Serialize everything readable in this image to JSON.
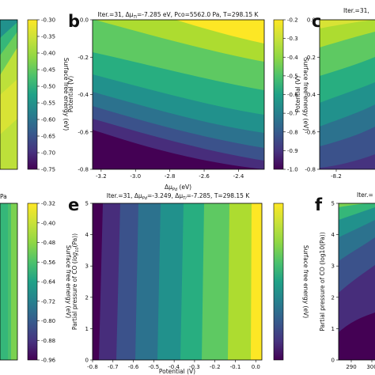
{
  "chart_data": [
    {
      "panel": "a",
      "type": "heatmap",
      "visible": "partial (cropped at left)",
      "colorbar": {
        "label": "Surface free energy (eV)",
        "ticks": [
          "-0.30",
          "-0.35",
          "-0.40",
          "-0.45",
          "-0.50",
          "-0.55",
          "-0.60",
          "-0.65",
          "-0.70",
          "-0.75"
        ],
        "range": [
          -0.75,
          -0.3
        ]
      }
    },
    {
      "panel": "b",
      "type": "heatmap",
      "title": "Iter.=31, Δμ_Ti=-7.285 eV, Pco=5562.0 Pa, T=298.15 K",
      "xlabel": "Δμ_Pd (eV)",
      "ylabel": "Potential (V)",
      "xticks": [
        "-3.2",
        "-3.0",
        "-2.8",
        "-2.6",
        "-2.4"
      ],
      "xlim": [
        -3.25,
        -2.25
      ],
      "yticks": [
        "0.0",
        "-0.2",
        "-0.4",
        "-0.6",
        "-0.8"
      ],
      "ylim": [
        -0.8,
        0.0
      ],
      "colorbar": {
        "label": "Surface free energy (eV)",
        "ticks": [
          "-0.2",
          "-0.3",
          "-0.4",
          "-0.5",
          "-0.6",
          "-0.7",
          "-0.8",
          "-0.9",
          "-1.0"
        ],
        "range": [
          -1.0,
          -0.2
        ]
      },
      "pattern": "energy increases toward upper right (higher Δμ_Pd, higher potential)"
    },
    {
      "panel": "c",
      "type": "heatmap",
      "visible": "partial (cropped at right)",
      "title": "Iter.=31,",
      "ylabel": "Potential (V)",
      "xticks": [
        "-8.2"
      ],
      "yticks": [
        "0.0",
        "-0.2",
        "-0.4",
        "-0.6",
        "-0.8"
      ],
      "ylim": [
        -0.8,
        0.0
      ]
    },
    {
      "panel": "d",
      "type": "heatmap",
      "visible": "partial (cropped at left)",
      "title_fragment": "Pa",
      "colorbar": {
        "label": "Surface free energy (eV)",
        "ticks": [
          "-0.32",
          "-0.40",
          "-0.48",
          "-0.56",
          "-0.64",
          "-0.72",
          "-0.80",
          "-0.88",
          "-0.96"
        ],
        "range": [
          -0.96,
          -0.32
        ]
      }
    },
    {
      "panel": "e",
      "type": "heatmap",
      "title": "Iter.=31, Δμ_Pd=-3.249, Δμ_Ti=-7.285, T=298.15 K",
      "xlabel": "Potential (V)",
      "ylabel": "Partial pressure of CO (log10(Pa))",
      "xticks": [
        "-0.8",
        "-0.7",
        "-0.6",
        "-0.5",
        "-0.4",
        "-0.3",
        "-0.2",
        "-0.1",
        "0.0"
      ],
      "xlim": [
        -0.8,
        0.03
      ],
      "yticks": [
        "5",
        "4",
        "3",
        "2",
        "1",
        "0"
      ],
      "ylim": [
        0,
        5
      ],
      "colorbar": {
        "label": "Surface free energy (eV)"
      },
      "pattern": "energy increases with potential; nearly vertical contour bands"
    },
    {
      "panel": "f",
      "type": "heatmap",
      "visible": "partial (cropped at right)",
      "title": "Iter.=",
      "ylabel": "Partial pressure of CO (log10(Pa))",
      "xticks": [
        "290",
        "300"
      ],
      "yticks": [
        "5",
        "4",
        "3",
        "2",
        "1",
        "0"
      ],
      "ylim": [
        0,
        5
      ]
    }
  ],
  "labels": {
    "b_title": "Iter.=31, Δμ",
    "b_title_sub": "Ti",
    "b_title_rest": "=-7.285 eV, Pco=5562.0 Pa, T=298.15 K",
    "b_xlabel": "Δμ",
    "b_xlabel_sub": "Pd",
    "b_xlabel_rest": " (eV)",
    "b_ylabel": "Potential (V)",
    "c_title": "Iter.=31,",
    "c_ylabel": "Potential (V)",
    "d_title": "Pa",
    "e_title": "Iter.=31, Δμ",
    "e_title_sub1": "Pd",
    "e_title_mid": "=-3.249, Δμ",
    "e_title_sub2": "Ti",
    "e_title_rest": "=-7.285, T=298.15 K",
    "e_xlabel": "Potential (V)",
    "e_ylabel": "Partial pressure of CO (",
    "e_ylabel_it": "log",
    "e_ylabel_sub": "10",
    "e_ylabel_rest": "(Pa))",
    "f_title": "Iter.=",
    "f_ylabel": "Partial pressure of CO (log10(Pa))",
    "cbar_label": "Surface free energy (eV)",
    "panel_b": "b",
    "panel_c": "c",
    "panel_e": "e",
    "panel_f": "f"
  }
}
